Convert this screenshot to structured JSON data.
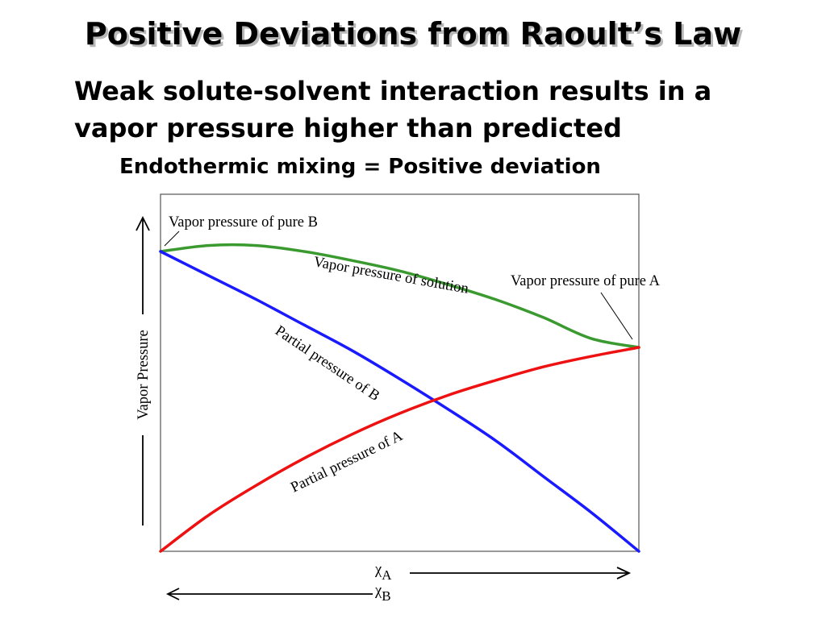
{
  "slide": {
    "title": "Positive Deviations from Raoult’s Law",
    "line1": "Weak solute-solvent interaction results in a vapor pressure higher than predicted",
    "line2": "Endothermic mixing = Positive deviation"
  },
  "chart_data": {
    "type": "line",
    "title": "",
    "xlabel_A": "χA",
    "xlabel_B": "χB",
    "ylabel": "Vapor Pressure",
    "xlim": [
      0,
      1
    ],
    "ylim": [
      0,
      1
    ],
    "grid": false,
    "x": [
      0,
      0.1,
      0.2,
      0.3,
      0.4,
      0.5,
      0.6,
      0.7,
      0.8,
      0.9,
      1.0
    ],
    "series": [
      {
        "name": "Vapor pressure of solution",
        "color": "#3a9a2f",
        "values": [
          1.0,
          1.02,
          1.02,
          1.0,
          0.97,
          0.935,
          0.89,
          0.84,
          0.78,
          0.71,
          0.68
        ]
      },
      {
        "name": "Partial pressure of B",
        "color": "#1a1aff",
        "values": [
          1.0,
          0.92,
          0.84,
          0.755,
          0.67,
          0.575,
          0.475,
          0.37,
          0.25,
          0.13,
          0.0
        ]
      },
      {
        "name": "Partial pressure of A",
        "color": "#ee1111",
        "values": [
          0.0,
          0.12,
          0.22,
          0.31,
          0.39,
          0.46,
          0.52,
          0.57,
          0.615,
          0.65,
          0.68
        ]
      }
    ],
    "annotations": {
      "pure_B": "Vapor pressure of pure B",
      "pure_A": "Vapor pressure of pure A",
      "solution": "Vapor pressure of solution",
      "partial_B": "Partial pressure of B",
      "partial_A": "Partial pressure of A"
    }
  }
}
